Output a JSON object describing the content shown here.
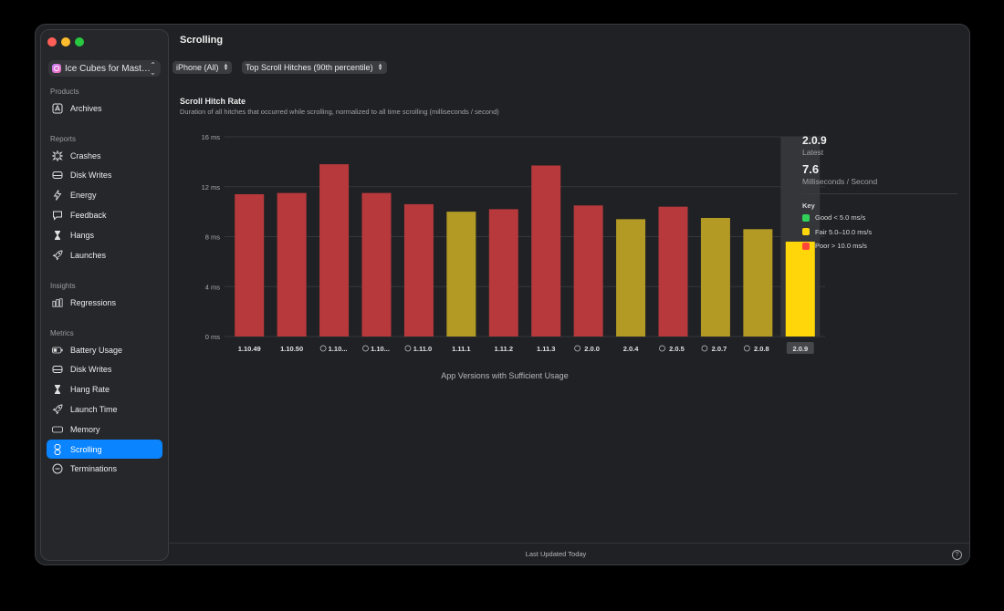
{
  "window": {
    "title": "Scrolling"
  },
  "sidebar": {
    "app_name": "Ice Cubes for Mast…",
    "sections": [
      {
        "title": "Products",
        "items": [
          {
            "label": "Archives",
            "icon": "archive-icon"
          }
        ]
      },
      {
        "title": "Reports",
        "items": [
          {
            "label": "Crashes",
            "icon": "crash-icon"
          },
          {
            "label": "Disk Writes",
            "icon": "disk-icon"
          },
          {
            "label": "Energy",
            "icon": "energy-icon"
          },
          {
            "label": "Feedback",
            "icon": "feedback-icon"
          },
          {
            "label": "Hangs",
            "icon": "hourglass-icon"
          },
          {
            "label": "Launches",
            "icon": "rocket-icon"
          }
        ]
      },
      {
        "title": "Insights",
        "items": [
          {
            "label": "Regressions",
            "icon": "regression-icon"
          }
        ]
      },
      {
        "title": "Metrics",
        "items": [
          {
            "label": "Battery Usage",
            "icon": "battery-icon"
          },
          {
            "label": "Disk Writes",
            "icon": "disk-icon"
          },
          {
            "label": "Hang Rate",
            "icon": "hourglass-icon"
          },
          {
            "label": "Launch Time",
            "icon": "rocket-icon"
          },
          {
            "label": "Memory",
            "icon": "memory-icon"
          },
          {
            "label": "Scrolling",
            "icon": "scroll-icon",
            "active": true
          },
          {
            "label": "Terminations",
            "icon": "termination-icon"
          }
        ]
      }
    ]
  },
  "filters": {
    "device": "iPhone (All)",
    "metric": "Top Scroll Hitches (90th percentile)"
  },
  "chart_data": {
    "type": "bar",
    "title": "Scroll Hitch Rate",
    "subtitle": "Duration of all hitches that occurred while scrolling, normalized to all time scrolling (milliseconds / second)",
    "xlabel": "App Versions with Sufficient Usage",
    "ylim": [
      0,
      16
    ],
    "yticks": [
      "16 ms",
      "12 ms",
      "8 ms",
      "4 ms",
      "0 ms"
    ],
    "ytick_values": [
      16,
      12,
      8,
      4,
      0
    ],
    "categories": [
      "1.10.49",
      "1.10.50",
      "1.10...",
      "1.10...",
      "1.11.0",
      "1.11.1",
      "1.11.2",
      "1.11.3",
      "2.0.0",
      "2.0.4",
      "2.0.5",
      "2.0.7",
      "2.0.8",
      "2.0.9"
    ],
    "values": [
      11.4,
      11.5,
      13.8,
      11.5,
      10.6,
      10.0,
      10.2,
      13.7,
      10.5,
      9.4,
      10.4,
      9.5,
      8.6,
      7.6
    ],
    "status": [
      "poor",
      "poor",
      "poor",
      "poor",
      "poor",
      "fair",
      "poor",
      "poor",
      "poor",
      "fair",
      "poor",
      "fair",
      "fair",
      "fair"
    ],
    "info_icon": [
      false,
      false,
      true,
      true,
      true,
      false,
      false,
      false,
      true,
      false,
      true,
      true,
      true,
      false
    ],
    "selected_index": 13
  },
  "latest": {
    "version": "2.0.9",
    "version_caption": "Latest",
    "value": "7.6",
    "value_caption": "Milliseconds / Second"
  },
  "key": {
    "title": "Key",
    "items": [
      {
        "label": "Good < 5.0 ms/s",
        "color": "#30d158"
      },
      {
        "label": "Fair 5.0–10.0 ms/s",
        "color": "#ffd60a"
      },
      {
        "label": "Poor > 10.0 ms/s",
        "color": "#ff453a"
      }
    ]
  },
  "colors": {
    "poor": "#b7393c",
    "fair": "#b29a24",
    "selected": "#ffd60a",
    "accent": "#0a84ff"
  },
  "footer": {
    "text": "Last Updated Today",
    "help_glyph": "?"
  }
}
